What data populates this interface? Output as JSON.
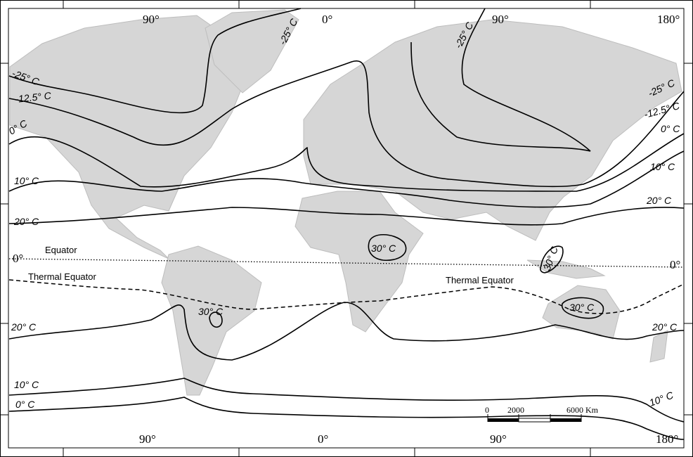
{
  "map": {
    "longitude_labels_top": [
      "90°",
      "0°",
      "90°",
      "180°"
    ],
    "longitude_labels_bottom": [
      "90°",
      "0°",
      "90°",
      "180°"
    ],
    "latitude_labels": {
      "left": "0°",
      "right": "0°"
    },
    "lines": {
      "equator": "Equator",
      "thermal_equator_west": "Thermal Equator",
      "thermal_equator_east": "Thermal Equator"
    },
    "isotherm_labels": {
      "na_minus25": "-25° C",
      "na_minus12_5": "-12.5° C",
      "w_0": "0° C",
      "w_10": "10° C",
      "w_20n": "20° C",
      "atl_minus25": "-25° C",
      "asia_minus25": "-25° C",
      "e_minus25": "-25° C",
      "e_minus12_5": "-12.5° C",
      "e_0": "0° C",
      "e_10": "10° C",
      "e_20n": "20° C",
      "africa_30": "30° C",
      "sa_30": "30° C",
      "indo_30": "30° C",
      "aus_30": "30° C",
      "w_20s": "20° C",
      "e_20s": "20° C",
      "w_10s": "10° C",
      "w_0s": "0° C",
      "e_10s": "10° C"
    },
    "scale_bar": {
      "ticks": [
        "0",
        "2000",
        "6000 Km"
      ]
    },
    "colors": {
      "land": "#d6d6d6",
      "isotherm": "#000000",
      "background": "#ffffff"
    }
  }
}
